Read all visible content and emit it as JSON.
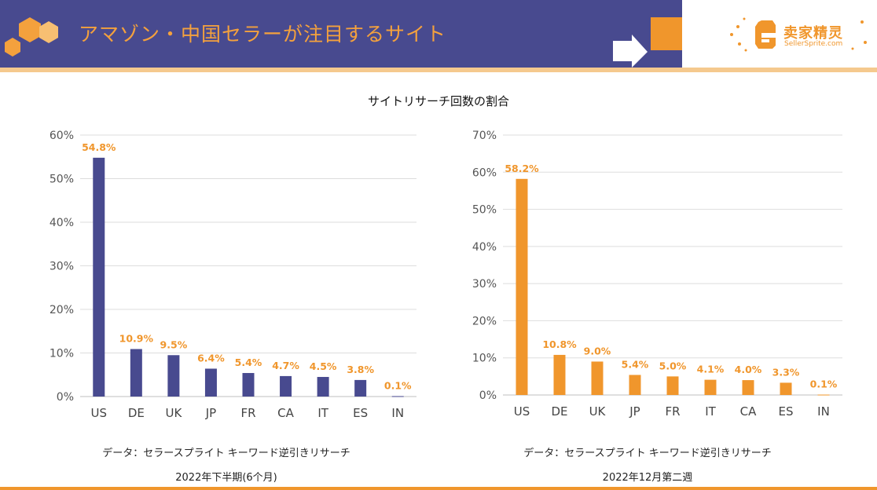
{
  "header": {
    "title": "アマゾン・中国セラーが注目するサイト",
    "logo_cn": "卖家精灵",
    "logo_en": "SellerSprite.com"
  },
  "colors": {
    "navy": "#484a8f",
    "orange": "#f0962c",
    "label_orange": "#f0962c"
  },
  "chart_title": "サイトリサーチ回数の割合",
  "chart_data": [
    {
      "type": "bar",
      "categories": [
        "US",
        "DE",
        "UK",
        "JP",
        "FR",
        "CA",
        "IT",
        "ES",
        "IN"
      ],
      "values": [
        54.8,
        10.9,
        9.5,
        6.4,
        5.4,
        4.7,
        4.5,
        3.8,
        0.1
      ],
      "data_labels": [
        "54.8%",
        "10.9%",
        "9.5%",
        "6.4%",
        "5.4%",
        "4.7%",
        "4.5%",
        "3.8%",
        "0.1%"
      ],
      "y_ticks": [
        "0%",
        "10%",
        "20%",
        "30%",
        "40%",
        "50%",
        "60%"
      ],
      "ylim": [
        0,
        60
      ],
      "grid": true,
      "bar_color": "#484a8f",
      "caption_line1": "データ：セラースプライト キーワード逆引きリサーチ",
      "caption_line2": "2022年下半期(6个月)"
    },
    {
      "type": "bar",
      "categories": [
        "US",
        "DE",
        "UK",
        "JP",
        "FR",
        "IT",
        "CA",
        "ES",
        "IN"
      ],
      "values": [
        58.2,
        10.8,
        9.0,
        5.4,
        5.0,
        4.1,
        4.0,
        3.3,
        0.1
      ],
      "data_labels": [
        "58.2%",
        "10.8%",
        "9.0%",
        "5.4%",
        "5.0%",
        "4.1%",
        "4.0%",
        "3.3%",
        "0.1%"
      ],
      "y_ticks": [
        "0%",
        "10%",
        "20%",
        "30%",
        "40%",
        "50%",
        "60%",
        "70%"
      ],
      "ylim": [
        0,
        70
      ],
      "grid": true,
      "bar_color": "#f0962c",
      "caption_line1": "データ：セラースプライト キーワード逆引きリサーチ",
      "caption_line2": "2022年12月第二週"
    }
  ]
}
